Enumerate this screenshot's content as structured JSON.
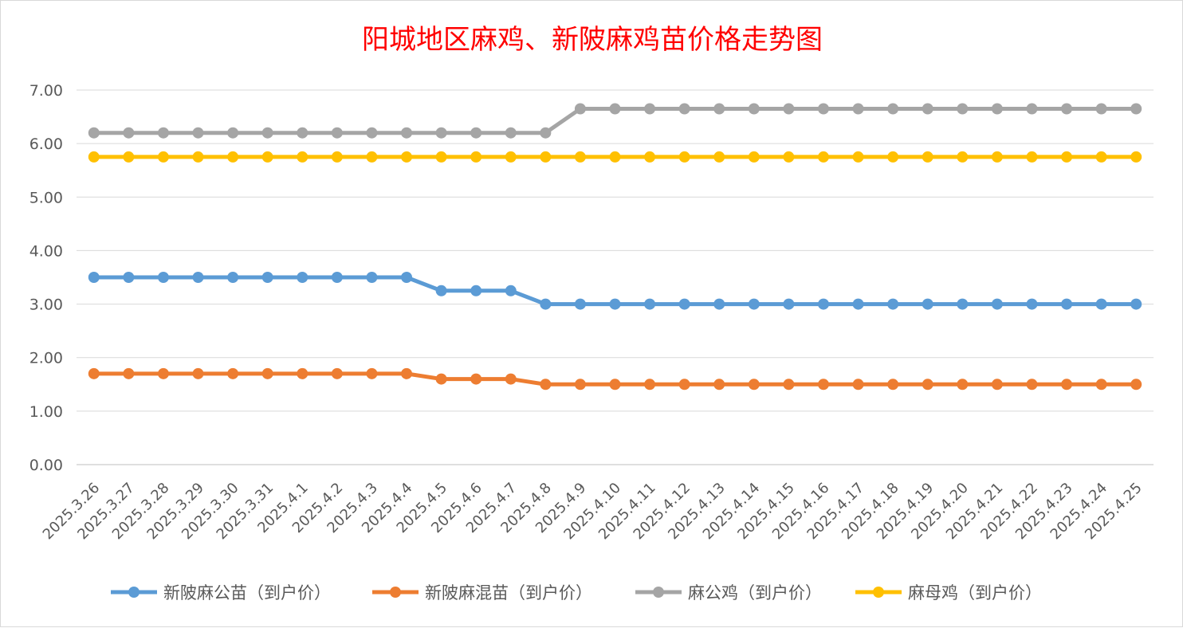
{
  "chart_data": {
    "type": "line",
    "title": "阳城地区麻鸡、新陂麻鸡苗价格走势图",
    "xlabel": "",
    "ylabel": "",
    "ylim": [
      0,
      7
    ],
    "yticks": [
      "0.00",
      "1.00",
      "2.00",
      "3.00",
      "4.00",
      "5.00",
      "6.00",
      "7.00"
    ],
    "grid": true,
    "legend_position": "bottom",
    "categories": [
      "2025.3.26",
      "2025.3.27",
      "2025.3.28",
      "2025.3.29",
      "2025.3.30",
      "2025.3.31",
      "2025.4.1",
      "2025.4.2",
      "2025.4.3",
      "2025.4.4",
      "2025.4.5",
      "2025.4.6",
      "2025.4.7",
      "2025.4.8",
      "2025.4.9",
      "2025.4.10",
      "2025.4.11",
      "2025.4.12",
      "2025.4.13",
      "2025.4.14",
      "2025.4.15",
      "2025.4.16",
      "2025.4.17",
      "2025.4.18",
      "2025.4.19",
      "2025.4.20",
      "2025.4.21",
      "2025.4.22",
      "2025.4.23",
      "2025.4.24",
      "2025.4.25"
    ],
    "series": [
      {
        "name": "新陂麻公苗（到户价）",
        "color": "#5b9bd5",
        "values": [
          3.5,
          3.5,
          3.5,
          3.5,
          3.5,
          3.5,
          3.5,
          3.5,
          3.5,
          3.5,
          3.25,
          3.25,
          3.25,
          3.0,
          3.0,
          3.0,
          3.0,
          3.0,
          3.0,
          3.0,
          3.0,
          3.0,
          3.0,
          3.0,
          3.0,
          3.0,
          3.0,
          3.0,
          3.0,
          3.0,
          3.0
        ]
      },
      {
        "name": "新陂麻混苗（到户价）",
        "color": "#ed7d31",
        "values": [
          1.7,
          1.7,
          1.7,
          1.7,
          1.7,
          1.7,
          1.7,
          1.7,
          1.7,
          1.7,
          1.6,
          1.6,
          1.6,
          1.5,
          1.5,
          1.5,
          1.5,
          1.5,
          1.5,
          1.5,
          1.5,
          1.5,
          1.5,
          1.5,
          1.5,
          1.5,
          1.5,
          1.5,
          1.5,
          1.5,
          1.5
        ]
      },
      {
        "name": "麻公鸡（到户价）",
        "color": "#a5a5a5",
        "values": [
          6.2,
          6.2,
          6.2,
          6.2,
          6.2,
          6.2,
          6.2,
          6.2,
          6.2,
          6.2,
          6.2,
          6.2,
          6.2,
          6.2,
          6.65,
          6.65,
          6.65,
          6.65,
          6.65,
          6.65,
          6.65,
          6.65,
          6.65,
          6.65,
          6.65,
          6.65,
          6.65,
          6.65,
          6.65,
          6.65,
          6.65
        ]
      },
      {
        "name": "麻母鸡（到户价）",
        "color": "#ffc000",
        "values": [
          5.75,
          5.75,
          5.75,
          5.75,
          5.75,
          5.75,
          5.75,
          5.75,
          5.75,
          5.75,
          5.75,
          5.75,
          5.75,
          5.75,
          5.75,
          5.75,
          5.75,
          5.75,
          5.75,
          5.75,
          5.75,
          5.75,
          5.75,
          5.75,
          5.75,
          5.75,
          5.75,
          5.75,
          5.75,
          5.75,
          5.75
        ]
      }
    ]
  }
}
